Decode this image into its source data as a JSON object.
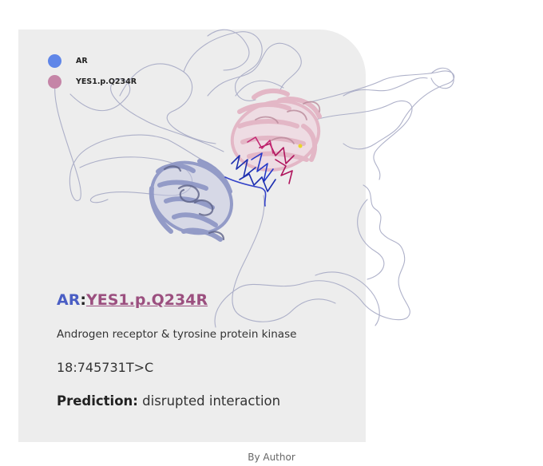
{
  "legend": [
    {
      "label": "AR",
      "color": "#5f86e8"
    },
    {
      "label": "YES1.p.Q234R",
      "color": "#c585a7"
    }
  ],
  "card": {
    "title_gene": "AR",
    "title_separator": ":",
    "title_mutation": "YES1.p.Q234R",
    "description": "Androgen receptor & tyrosine protein kinase",
    "variant": "18:745731T>C",
    "prediction_label": "Prediction:",
    "prediction_value": "disrupted interaction"
  },
  "credit": "By Author",
  "colors": {
    "card_background": "#ededed",
    "ar_structure": "#8f97c6",
    "yes1_structure": "#e3b5c4",
    "interface_blue": "#1d2fb0",
    "interface_magenta": "#b0165e",
    "title_ar": "#4a5ec4",
    "title_mutation": "#9b4f7f"
  }
}
